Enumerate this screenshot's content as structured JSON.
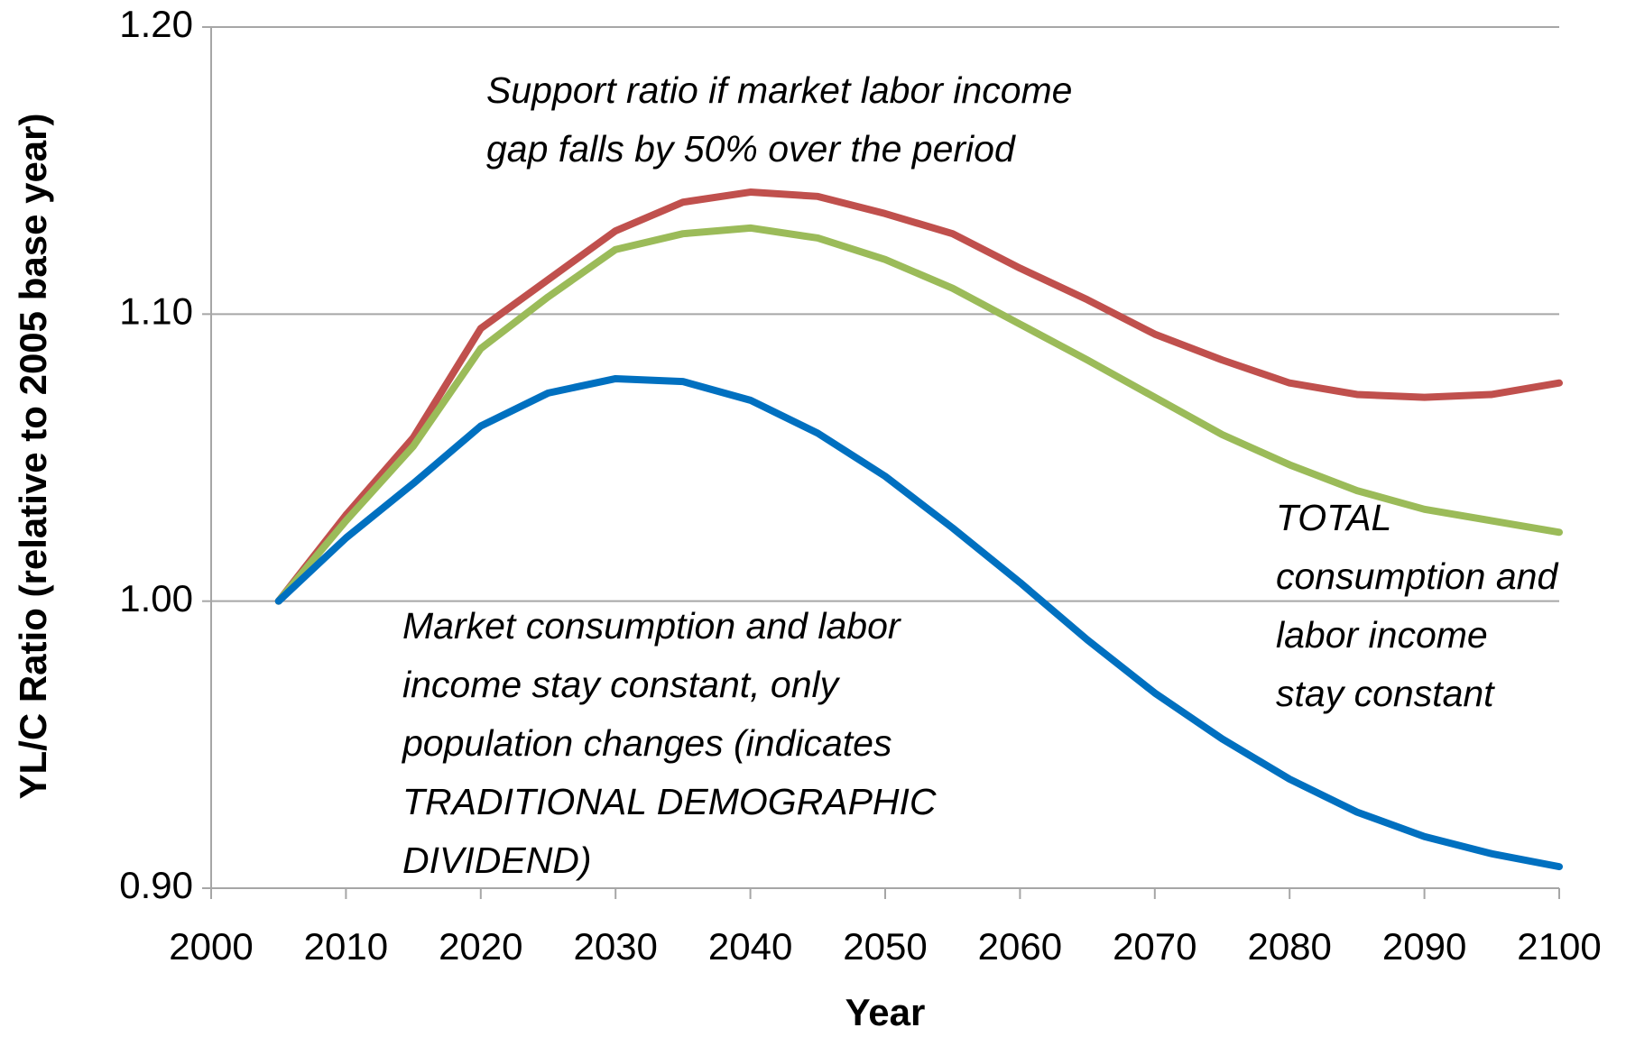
{
  "chart_data": {
    "type": "line",
    "x_label": "Year",
    "y_label": "YL/C Ratio (relative to 2005 base year)",
    "x": [
      2005,
      2010,
      2015,
      2020,
      2025,
      2030,
      2035,
      2040,
      2045,
      2050,
      2055,
      2060,
      2065,
      2070,
      2075,
      2080,
      2085,
      2090,
      2095,
      2100
    ],
    "series": [
      {
        "color": "#c0504d",
        "values": [
          1.0,
          1.03,
          1.057,
          1.095,
          1.112,
          1.129,
          1.139,
          1.1425,
          1.141,
          1.135,
          1.128,
          1.116,
          1.105,
          1.093,
          1.084,
          1.076,
          1.072,
          1.071,
          1.072,
          1.076
        ]
      },
      {
        "color": "#9bbb59",
        "values": [
          1.0,
          1.028,
          1.054,
          1.088,
          1.106,
          1.1225,
          1.128,
          1.13,
          1.1265,
          1.119,
          1.109,
          1.0965,
          1.084,
          1.071,
          1.058,
          1.0475,
          1.0385,
          1.032,
          1.028,
          1.024
        ]
      },
      {
        "color": "#0070c0",
        "values": [
          1.0,
          1.022,
          1.041,
          1.061,
          1.0725,
          1.0775,
          1.0765,
          1.07,
          1.0585,
          1.0435,
          1.0255,
          1.0065,
          0.9865,
          0.968,
          0.952,
          0.938,
          0.9265,
          0.918,
          0.912,
          0.9075
        ]
      }
    ],
    "xlim": [
      2000,
      2100
    ],
    "xticks": [
      2000,
      2010,
      2020,
      2030,
      2040,
      2050,
      2060,
      2070,
      2080,
      2090,
      2100
    ],
    "ylim": [
      0.9,
      1.2
    ],
    "yticks": [
      {
        "value": 0.9,
        "label": "0.90"
      },
      {
        "value": 1.0,
        "label": "1.00"
      },
      {
        "value": 1.1,
        "label": "1.10"
      },
      {
        "value": 1.2,
        "label": "1.20"
      }
    ],
    "grid": true,
    "annotations": [
      {
        "lines": [
          "Support ratio if market labor income",
          "gap falls by 50% over the period"
        ]
      },
      {
        "lines": [
          "Market consumption and labor",
          "income stay constant, only",
          "population changes (indicates",
          "TRADITIONAL DEMOGRAPHIC",
          "DIVIDEND)"
        ]
      },
      {
        "lines": [
          "TOTAL",
          "consumption and",
          "labor income",
          "stay constant"
        ]
      }
    ]
  }
}
